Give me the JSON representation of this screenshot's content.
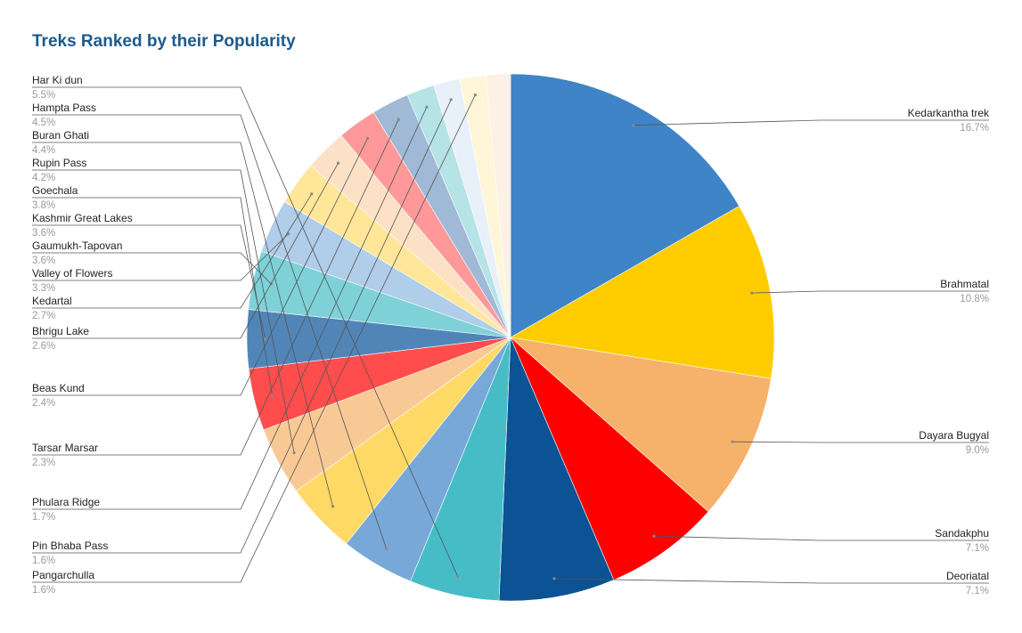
{
  "chart_data": {
    "type": "pie",
    "title": "Treks Ranked by their Popularity",
    "slices": [
      {
        "label": "Kedarkantha trek",
        "percent_label": "16.7%",
        "value": 16.7,
        "color": "#3f84c6"
      },
      {
        "label": "Brahmatal",
        "percent_label": "10.8%",
        "value": 10.8,
        "color": "#ffcc00"
      },
      {
        "label": "Dayara Bugyal",
        "percent_label": "9.0%",
        "value": 9.0,
        "color": "#f6b26b"
      },
      {
        "label": "Sandakphu",
        "percent_label": "7.1%",
        "value": 7.1,
        "color": "#ff0000"
      },
      {
        "label": "Deoriatal",
        "percent_label": "7.1%",
        "value": 7.1,
        "color": "#0b5394"
      },
      {
        "label": "Har Ki dun",
        "percent_label": "5.5%",
        "value": 5.5,
        "color": "#46bdc6"
      },
      {
        "label": "Hampta Pass",
        "percent_label": "4.5%",
        "value": 4.5,
        "color": "#78a8d8"
      },
      {
        "label": "Buran Ghati",
        "percent_label": "4.4%",
        "value": 4.4,
        "color": "#ffd966"
      },
      {
        "label": "Rupin Pass",
        "percent_label": "4.2%",
        "value": 4.2,
        "color": "#f9c995"
      },
      {
        "label": "Goechala",
        "percent_label": "3.8%",
        "value": 3.8,
        "color": "#ff4d4d"
      },
      {
        "label": "Kashmir Great Lakes",
        "percent_label": "3.6%",
        "value": 3.6,
        "color": "#5185b8"
      },
      {
        "label": "Gaumukh-Tapovan",
        "percent_label": "3.6%",
        "value": 3.6,
        "color": "#7ed1d7"
      },
      {
        "label": "Valley of Flowers",
        "percent_label": "3.3%",
        "value": 3.3,
        "color": "#b0cde9"
      },
      {
        "label": "Kedartal",
        "percent_label": "2.7%",
        "value": 2.7,
        "color": "#ffe699"
      },
      {
        "label": "Bhrigu Lake",
        "percent_label": "2.6%",
        "value": 2.6,
        "color": "#fce1c6"
      },
      {
        "label": "Beas Kund",
        "percent_label": "2.4%",
        "value": 2.4,
        "color": "#ff9999"
      },
      {
        "label": "Tarsar Marsar",
        "percent_label": "2.3%",
        "value": 2.3,
        "color": "#9fb9d6"
      },
      {
        "label": "Phulara Ridge",
        "percent_label": "1.7%",
        "value": 1.7,
        "color": "#b5e3e6"
      },
      {
        "label": "Pin Bhaba Pass",
        "percent_label": "1.6%",
        "value": 1.6,
        "color": "#e8f0fa"
      },
      {
        "label": "Pangarchulla",
        "percent_label": "1.6%",
        "value": 1.6,
        "color": "#fff6d9"
      },
      {
        "label": "",
        "percent_label": "",
        "value": 1.5,
        "color": "#fdf0e4"
      }
    ],
    "legend_placement": "labels-with-leader-lines"
  }
}
